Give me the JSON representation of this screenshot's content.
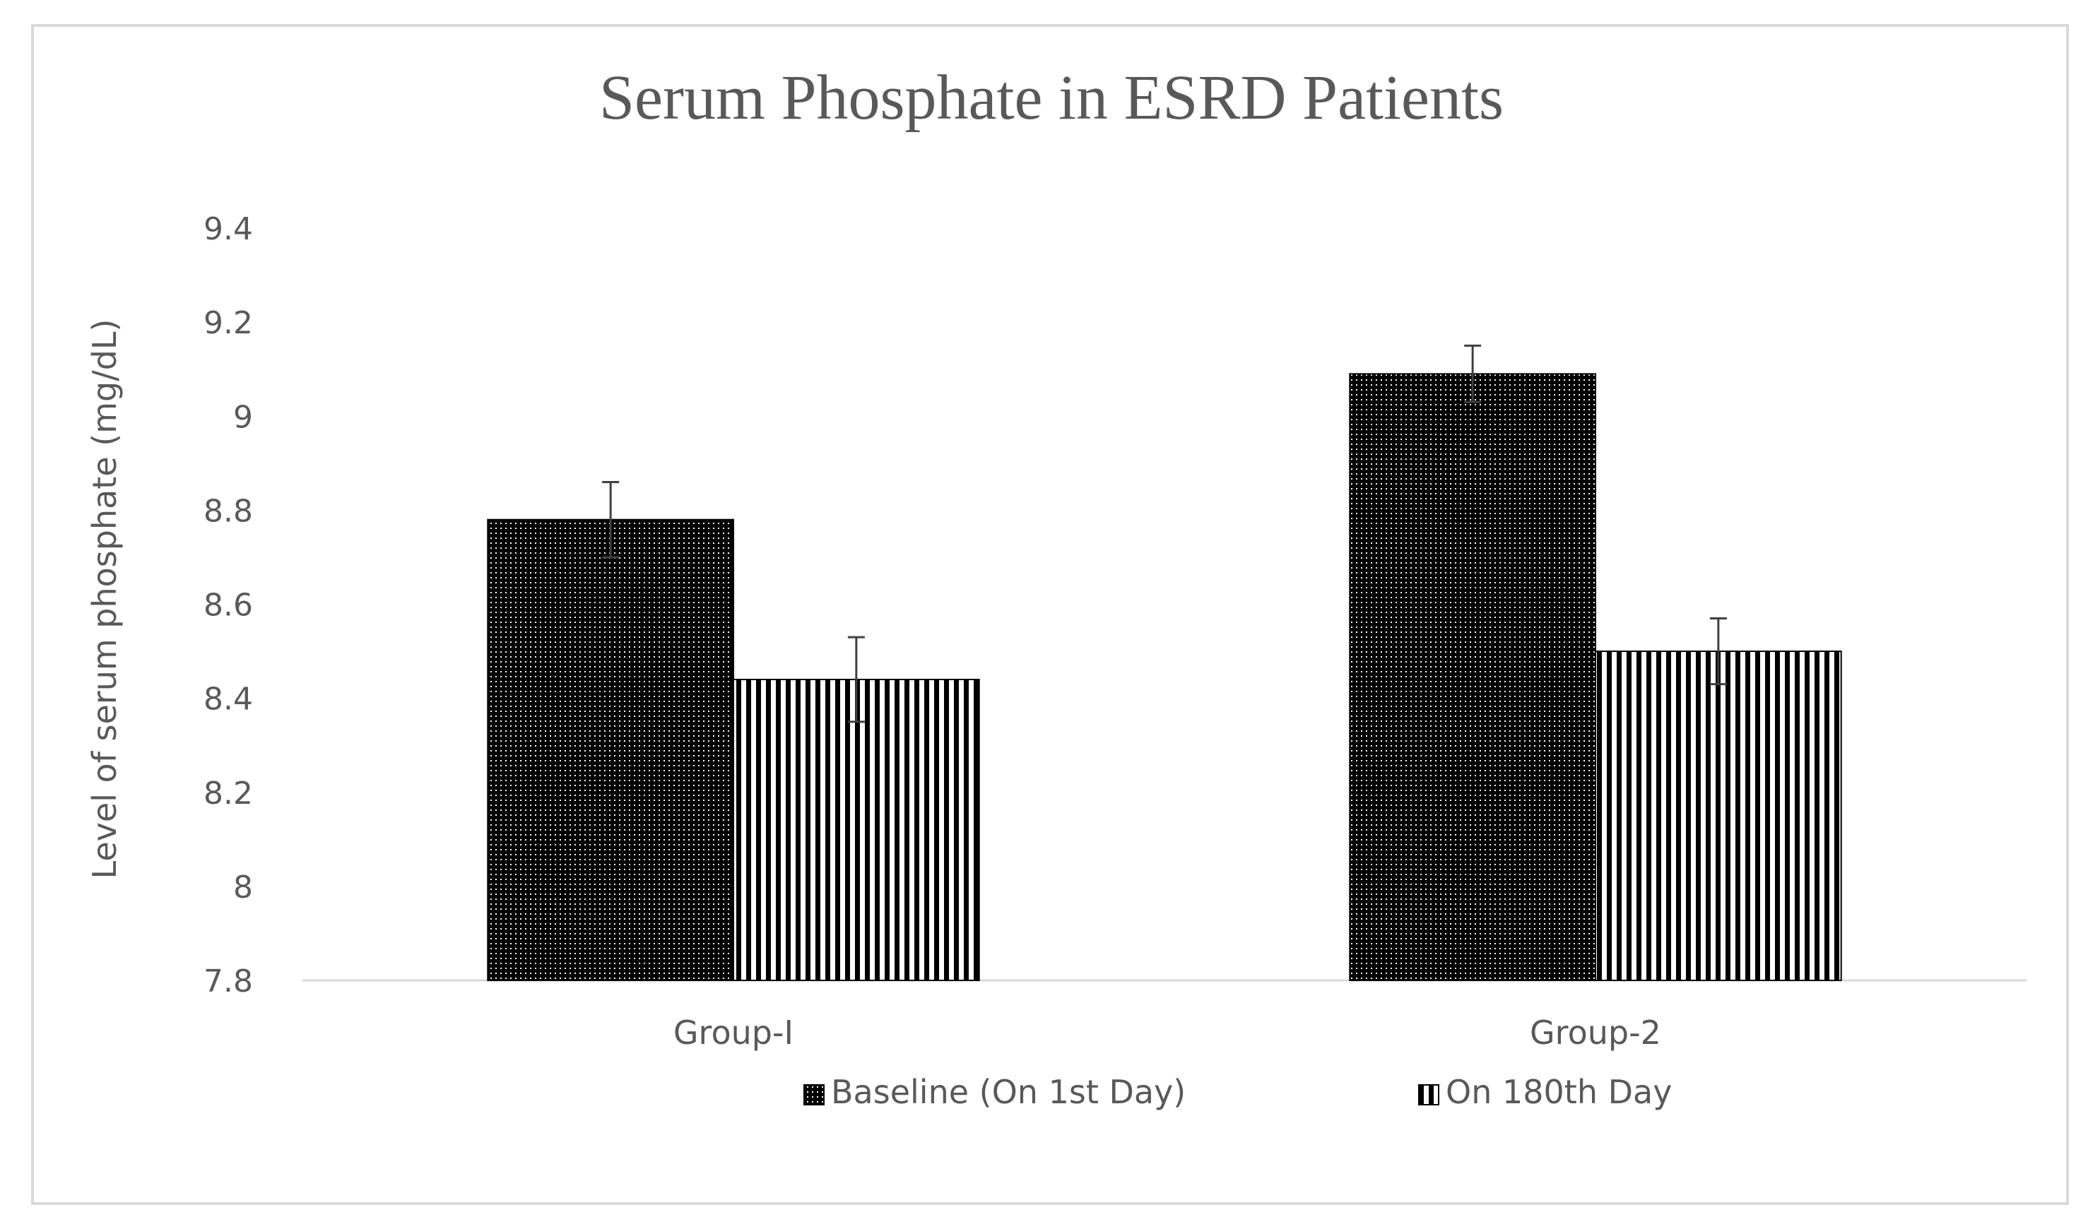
{
  "chart_data": {
    "type": "bar",
    "title": "Serum Phosphate  in ESRD Patients",
    "xlabel": "",
    "ylabel": "Level  of serum phosphate (mg/dL)",
    "categories": [
      "Group-I",
      "Group-2"
    ],
    "ylim": [
      7.8,
      9.4
    ],
    "yticks": [
      "7.8",
      "8",
      "8.2",
      "8.4",
      "8.6",
      "8.8",
      "9",
      "9.2",
      "9.4"
    ],
    "grid": false,
    "legend_position": "bottom",
    "series": [
      {
        "name": "Baseline (On 1st Day)",
        "pattern": "dots",
        "values": [
          8.78,
          9.09
        ],
        "error": [
          0.08,
          0.06
        ]
      },
      {
        "name": "On 180th Day",
        "pattern": "vertical-stripes",
        "values": [
          8.44,
          8.5
        ],
        "error": [
          0.09,
          0.07
        ]
      }
    ],
    "colors": {
      "text": "#595959",
      "axis": "#d9d9d9",
      "bar_fill": "#000000",
      "bar_bg": "#ffffff",
      "error_bar": "#404040"
    }
  }
}
